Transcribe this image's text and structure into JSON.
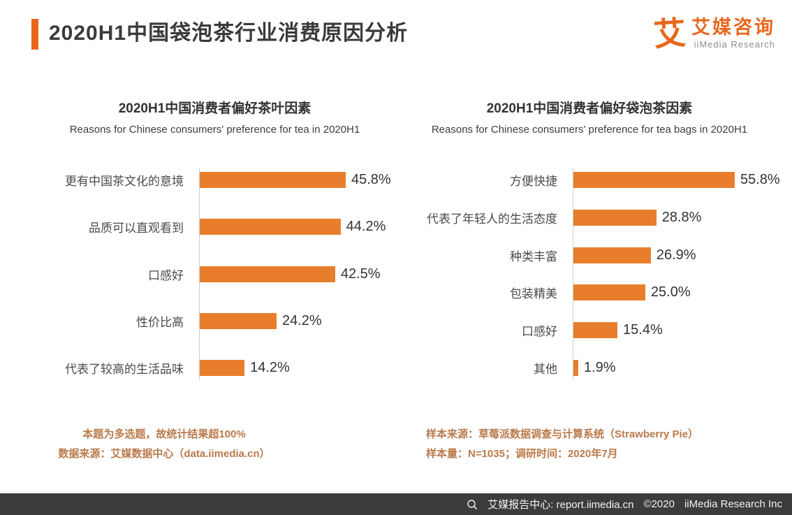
{
  "page": {
    "title": "2020H1中国袋泡茶行业消费原因分析",
    "colors": {
      "accent": "#E8671D",
      "bar": "#E87E2C",
      "footnote": "#B97A4C",
      "bottom_bar_bg": "#3C3C3C"
    }
  },
  "logo": {
    "symbol": "艾",
    "name_cn": "艾媒咨询",
    "name_en": "iiMedia Research"
  },
  "chart_data": [
    {
      "type": "bar",
      "orientation": "horizontal",
      "title": "2020H1中国消费者偏好茶叶因素",
      "subtitle": "Reasons for Chinese consumers' preference for tea in 2020H1",
      "categories": [
        "更有中国茶文化的意境",
        "品质可以直观看到",
        "口感好",
        "性价比高",
        "代表了较高的生活品味"
      ],
      "values": [
        45.8,
        44.2,
        42.5,
        24.2,
        14.2
      ],
      "value_labels": [
        "45.8%",
        "44.2%",
        "42.5%",
        "24.2%",
        "14.2%"
      ],
      "value_suffix": "%",
      "bar_color": "#E87E2C",
      "axis_line": true,
      "legend": "none"
    },
    {
      "type": "bar",
      "orientation": "horizontal",
      "title": "2020H1中国消费者偏好袋泡茶因素",
      "subtitle": "Reasons for Chinese consumers' preference for tea bags in 2020H1",
      "categories": [
        "方便快捷",
        "代表了年轻人的生活态度",
        "种类丰富",
        "包装精美",
        "口感好",
        "其他"
      ],
      "values": [
        55.8,
        28.8,
        26.9,
        25.0,
        15.4,
        1.9
      ],
      "value_labels": [
        "55.8%",
        "28.8%",
        "26.9%",
        "25.0%",
        "15.4%",
        "1.9%"
      ],
      "value_suffix": "%",
      "bar_color": "#E87E2C",
      "axis_line": true,
      "legend": "none"
    }
  ],
  "footnotes": {
    "left": [
      "本题为多选题，故统计结果超100%",
      "数据来源：艾媒数据中心（data.iimedia.cn）"
    ],
    "right": [
      "样本来源：草莓派数据调查与计算系统（Strawberry Pie）",
      "样本量：N=1035；调研时间：2020年7月"
    ]
  },
  "bottom_bar": {
    "segments": [
      "艾媒报告中心: report.iimedia.cn",
      "©2020",
      "iiMedia Research Inc"
    ]
  }
}
